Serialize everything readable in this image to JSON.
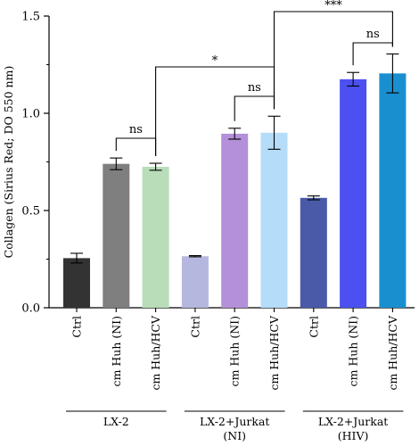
{
  "chart_data": {
    "type": "bar",
    "ylabel": "Collagen (Sirius Red; DO 550 nm)",
    "ylim": [
      0,
      1.5
    ],
    "yticks": [
      "0.0",
      "0.5",
      "1.0",
      "1.5"
    ],
    "categories": [
      "Ctrl",
      "cm Huh (NI)",
      "cm Huh/HCV",
      "Ctrl",
      "cm Huh (NI)",
      "cm Huh/HCV",
      "Ctrl",
      "cm Huh (NI)",
      "cm Huh/HCV"
    ],
    "values": [
      0.255,
      0.74,
      0.725,
      0.265,
      0.895,
      0.9,
      0.565,
      1.175,
      1.205
    ],
    "errors": [
      0.025,
      0.03,
      0.018,
      0.003,
      0.028,
      0.085,
      0.01,
      0.035,
      0.1
    ],
    "colors": [
      "#333333",
      "#7f7f7f",
      "#b9ddb9",
      "#b5b7de",
      "#b390d9",
      "#b5dcf8",
      "#4a5aa8",
      "#4c50f0",
      "#1a8fd0"
    ],
    "groups": [
      {
        "label": "LX-2",
        "label2": "",
        "start": 0,
        "end": 2
      },
      {
        "label": "LX-2+Jurkat",
        "label2": "(NI)",
        "start": 3,
        "end": 5
      },
      {
        "label": "LX-2+Jurkat",
        "label2": "(HIV)",
        "start": 6,
        "end": 8
      }
    ],
    "significance": [
      {
        "from": 1,
        "to": 2,
        "label": "ns"
      },
      {
        "from": 4,
        "to": 5,
        "label": "ns"
      },
      {
        "from": 7,
        "to": 8,
        "label": "ns"
      },
      {
        "from": 2,
        "to": 5,
        "label": "*"
      },
      {
        "from": 5,
        "to": 8,
        "label": "***"
      }
    ]
  }
}
